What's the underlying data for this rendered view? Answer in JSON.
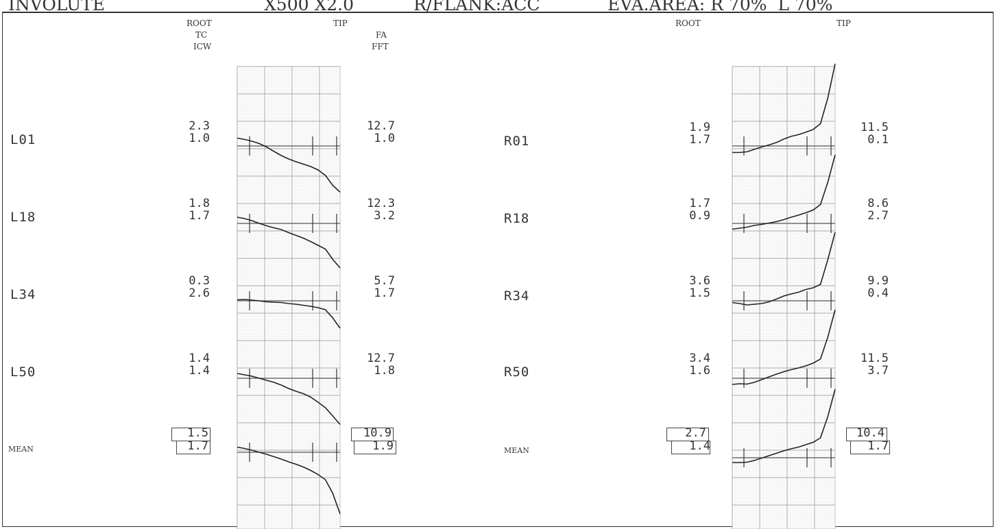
{
  "header": {
    "mode": "INVOLUTE",
    "magnification": "X500 X2.0",
    "flank": "R/FLANK:ACC",
    "eval_area": "EVA.AREA: R 70%  L 70%"
  },
  "left_panel": {
    "root_label": "ROOT",
    "tip_label": "TIP",
    "left_col_headers": [
      "TC",
      "ICW"
    ],
    "right_col_headers": [
      "FA",
      "FFT"
    ],
    "rows": [
      {
        "label": "L01",
        "tc": "2.3",
        "icw": "1.0",
        "fa": "12.7",
        "fft": "1.0"
      },
      {
        "label": "L18",
        "tc": "1.8",
        "icw": "1.7",
        "fa": "12.3",
        "fft": "3.2"
      },
      {
        "label": "L34",
        "tc": "0.3",
        "icw": "2.6",
        "fa": "5.7",
        "fft": "1.7"
      },
      {
        "label": "L50",
        "tc": "1.4",
        "icw": "1.4",
        "fa": "12.7",
        "fft": "1.8"
      }
    ],
    "mean": {
      "label": "MEAN",
      "tc": "1.5",
      "icw": "1.7",
      "fa": "10.9",
      "fft": "1.9"
    }
  },
  "right_panel": {
    "root_label": "ROOT",
    "tip_label": "TIP",
    "rows": [
      {
        "label": "R01",
        "tc": "1.9",
        "icw": "1.7",
        "fa": "11.5",
        "fft": "0.1"
      },
      {
        "label": "R18",
        "tc": "1.7",
        "icw": "0.9",
        "fa": "8.6",
        "fft": "2.7"
      },
      {
        "label": "R34",
        "tc": "3.6",
        "icw": "1.5",
        "fa": "9.9",
        "fft": "0.4"
      },
      {
        "label": "R50",
        "tc": "3.4",
        "icw": "1.6",
        "fa": "11.5",
        "fft": "3.7"
      }
    ],
    "mean": {
      "label": "MEAN",
      "tc": "2.7",
      "icw": "1.4",
      "fa": "10.4",
      "fft": "1.7"
    }
  },
  "chart_data": [
    {
      "type": "line",
      "panel": "left",
      "series": [
        {
          "name": "L01",
          "x": [
            0,
            10,
            20,
            30,
            40,
            50,
            60,
            70,
            80,
            90,
            100,
            110,
            120,
            130,
            140
          ],
          "y": [
            2.3,
            1.9,
            1.4,
            0.7,
            -0.3,
            -1.6,
            -2.8,
            -3.8,
            -4.6,
            -5.3,
            -6.0,
            -7.0,
            -8.6,
            -11.5,
            -13.5
          ]
        },
        {
          "name": "L18",
          "x": [
            0,
            10,
            20,
            30,
            40,
            50,
            60,
            70,
            80,
            90,
            100,
            110,
            120,
            130,
            140
          ],
          "y": [
            1.8,
            1.4,
            0.8,
            0.0,
            -0.7,
            -1.3,
            -1.8,
            -2.7,
            -3.5,
            -4.3,
            -5.3,
            -6.4,
            -7.5,
            -10.5,
            -13.0
          ]
        },
        {
          "name": "L34",
          "x": [
            0,
            10,
            20,
            30,
            40,
            50,
            60,
            70,
            80,
            90,
            100,
            110,
            120,
            130,
            140
          ],
          "y": [
            0.3,
            0.4,
            0.2,
            0.0,
            -0.3,
            -0.4,
            -0.5,
            -0.8,
            -1.0,
            -1.3,
            -1.6,
            -2.0,
            -2.6,
            -5.0,
            -8.0
          ]
        },
        {
          "name": "L50",
          "x": [
            0,
            10,
            20,
            30,
            40,
            50,
            60,
            70,
            80,
            90,
            100,
            110,
            120,
            130,
            140
          ],
          "y": [
            1.4,
            1.0,
            0.6,
            0.0,
            -0.6,
            -1.2,
            -2.0,
            -3.0,
            -3.8,
            -4.5,
            -5.5,
            -7.0,
            -8.6,
            -11.0,
            -13.5
          ]
        },
        {
          "name": "MEAN",
          "x": [
            0,
            10,
            20,
            30,
            40,
            50,
            60,
            70,
            80,
            90,
            100,
            110,
            120,
            130,
            140
          ],
          "y": [
            1.5,
            1.1,
            0.6,
            0.0,
            -0.6,
            -1.3,
            -2.0,
            -2.8,
            -3.5,
            -4.3,
            -5.3,
            -6.5,
            -8.0,
            -12.0,
            -18.0
          ]
        }
      ]
    },
    {
      "type": "line",
      "panel": "right",
      "series": [
        {
          "name": "R01",
          "x": [
            0,
            10,
            20,
            30,
            40,
            50,
            60,
            70,
            80,
            90,
            100,
            110,
            120,
            130,
            140
          ],
          "y": [
            -1.9,
            -1.9,
            -1.7,
            -1.0,
            -0.3,
            0.3,
            1.0,
            2.0,
            2.8,
            3.3,
            4.0,
            4.8,
            6.5,
            14.0,
            24.0
          ]
        },
        {
          "name": "R18",
          "x": [
            0,
            10,
            20,
            30,
            40,
            50,
            60,
            70,
            80,
            90,
            100,
            110,
            120,
            130,
            140
          ],
          "y": [
            -1.7,
            -1.4,
            -1.1,
            -0.6,
            -0.3,
            0.1,
            0.5,
            1.1,
            1.8,
            2.4,
            3.1,
            3.9,
            5.5,
            12.0,
            20.0
          ]
        },
        {
          "name": "R34",
          "x": [
            0,
            10,
            20,
            30,
            40,
            50,
            60,
            70,
            80,
            90,
            100,
            110,
            120,
            130,
            140
          ],
          "y": [
            -0.5,
            -0.8,
            -1.2,
            -1.0,
            -0.8,
            -0.3,
            0.5,
            1.4,
            2.0,
            2.5,
            3.3,
            3.8,
            4.8,
            12.0,
            20.0
          ]
        },
        {
          "name": "R50",
          "x": [
            0,
            10,
            20,
            30,
            40,
            50,
            60,
            70,
            80,
            90,
            100,
            110,
            120,
            130,
            140
          ],
          "y": [
            -1.8,
            -1.6,
            -1.7,
            -1.2,
            -0.4,
            0.4,
            1.2,
            1.9,
            2.5,
            3.0,
            3.6,
            4.4,
            5.6,
            12.0,
            20.0
          ]
        },
        {
          "name": "MEAN",
          "x": [
            0,
            10,
            20,
            30,
            40,
            50,
            60,
            70,
            80,
            90,
            100,
            110,
            120,
            130,
            140
          ],
          "y": [
            -1.4,
            -1.4,
            -1.3,
            -0.8,
            -0.1,
            0.6,
            1.3,
            2.0,
            2.6,
            3.1,
            3.8,
            4.5,
            5.8,
            12.0,
            20.0
          ]
        }
      ]
    }
  ]
}
